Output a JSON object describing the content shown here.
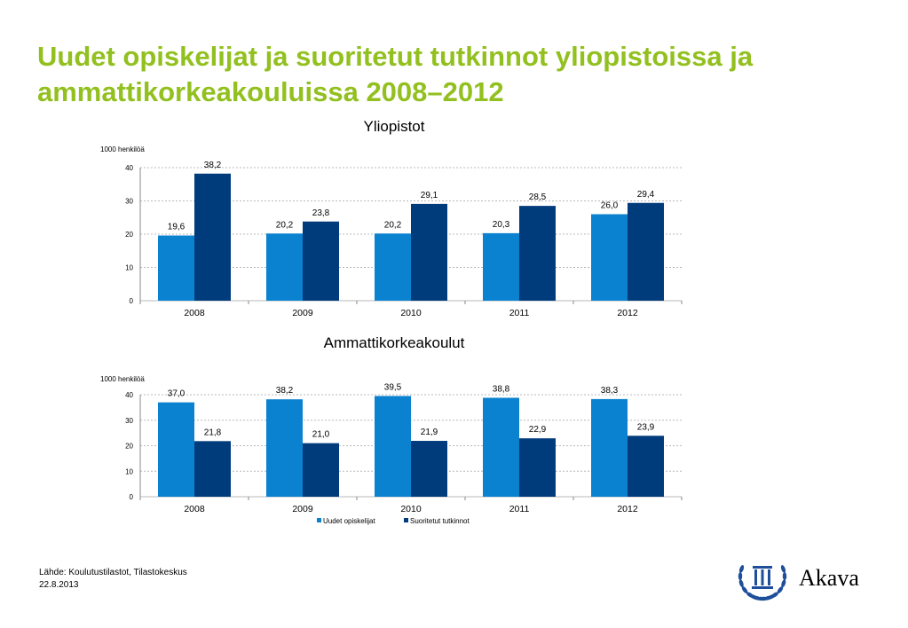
{
  "title": "Uudet opiskelijat ja suoritetut tutkinnot yliopistoissa ja ammattikorkeakouluissa 2008–2012",
  "colors": {
    "title": "#92c01f",
    "series1": "#0a82d0",
    "series2": "#003b7b",
    "grid": "#b8b8b8",
    "brand": "#1f4e9b"
  },
  "chart_data": [
    {
      "type": "bar",
      "title": "Yliopistot",
      "ylabel": "1000 henkilöä",
      "ylim": [
        0,
        40
      ],
      "yticks": [
        "0",
        "10",
        "20",
        "30",
        "40"
      ],
      "grid": true,
      "categories": [
        "2008",
        "2009",
        "2010",
        "2011",
        "2012"
      ],
      "series": [
        {
          "name": "Uudet opiskelijat",
          "values": [
            19.6,
            20.2,
            20.2,
            20.3,
            26.0
          ],
          "labels": [
            "19,6",
            "20,2",
            "20,2",
            "20,3",
            "26,0"
          ]
        },
        {
          "name": "Suoritetut tutkinnot",
          "values": [
            38.2,
            23.8,
            29.1,
            28.5,
            29.4
          ],
          "labels": [
            "38,2",
            "23,8",
            "29,1",
            "28,5",
            "29,4"
          ]
        }
      ]
    },
    {
      "type": "bar",
      "title": "Ammattikorkeakoulut",
      "ylabel": "1000 henkilöä",
      "ylim": [
        0,
        40
      ],
      "yticks": [
        "0",
        "10",
        "20",
        "30",
        "40"
      ],
      "grid": true,
      "legend_position": "bottom",
      "categories": [
        "2008",
        "2009",
        "2010",
        "2011",
        "2012"
      ],
      "series": [
        {
          "name": "Uudet opiskelijat",
          "values": [
            37.0,
            38.2,
            39.5,
            38.8,
            38.3
          ],
          "labels": [
            "37,0",
            "38,2",
            "39,5",
            "38,8",
            "38,3"
          ]
        },
        {
          "name": "Suoritetut tutkinnot",
          "values": [
            21.8,
            21.0,
            21.9,
            22.9,
            23.9
          ],
          "labels": [
            "21,8",
            "21,0",
            "21,9",
            "22,9",
            "23,9"
          ]
        }
      ]
    }
  ],
  "source": {
    "line1": "Lähde: Koulutustilastot, Tilastokeskus",
    "line2": "22.8.2013"
  },
  "logo": {
    "text": "Akava",
    "icon": "laurel-columns-icon"
  }
}
